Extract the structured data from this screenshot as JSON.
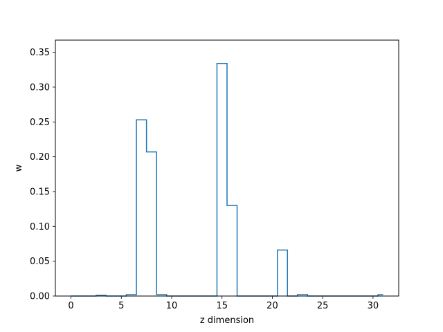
{
  "chart_data": {
    "type": "line",
    "drawstyle": "steps-mid",
    "title": "",
    "xlabel": "z dimension",
    "ylabel": "w",
    "xlim": [
      -1.55,
      32.55
    ],
    "ylim": [
      0.0,
      0.3675
    ],
    "grid": false,
    "legend": "none",
    "x_ticks": [
      "0",
      "5",
      "10",
      "15",
      "20",
      "25",
      "30"
    ],
    "y_ticks": [
      "0.00",
      "0.05",
      "0.10",
      "0.15",
      "0.20",
      "0.25",
      "0.30",
      "0.35"
    ],
    "x_tick_values": [
      0,
      5,
      10,
      15,
      20,
      25,
      30
    ],
    "y_tick_values": [
      0.0,
      0.05,
      0.1,
      0.15,
      0.2,
      0.25,
      0.3,
      0.35
    ],
    "series": [
      {
        "color": "#1f77b4",
        "x": [
          0,
          1,
          2,
          3,
          4,
          5,
          6,
          7,
          8,
          9,
          10,
          11,
          12,
          13,
          14,
          15,
          16,
          17,
          18,
          19,
          20,
          21,
          22,
          23,
          24,
          25,
          26,
          27,
          28,
          29,
          30,
          31
        ],
        "values": [
          0.0,
          0.0,
          0.0,
          0.001,
          0.0,
          0.0,
          0.002,
          0.253,
          0.207,
          0.002,
          0.0,
          0.0,
          0.0,
          0.0,
          0.0,
          0.334,
          0.13,
          0.0,
          0.0,
          0.0,
          0.0,
          0.066,
          0.0,
          0.002,
          0.0,
          0.0,
          0.0,
          0.0,
          0.0,
          0.0,
          0.0,
          0.002
        ]
      }
    ]
  }
}
